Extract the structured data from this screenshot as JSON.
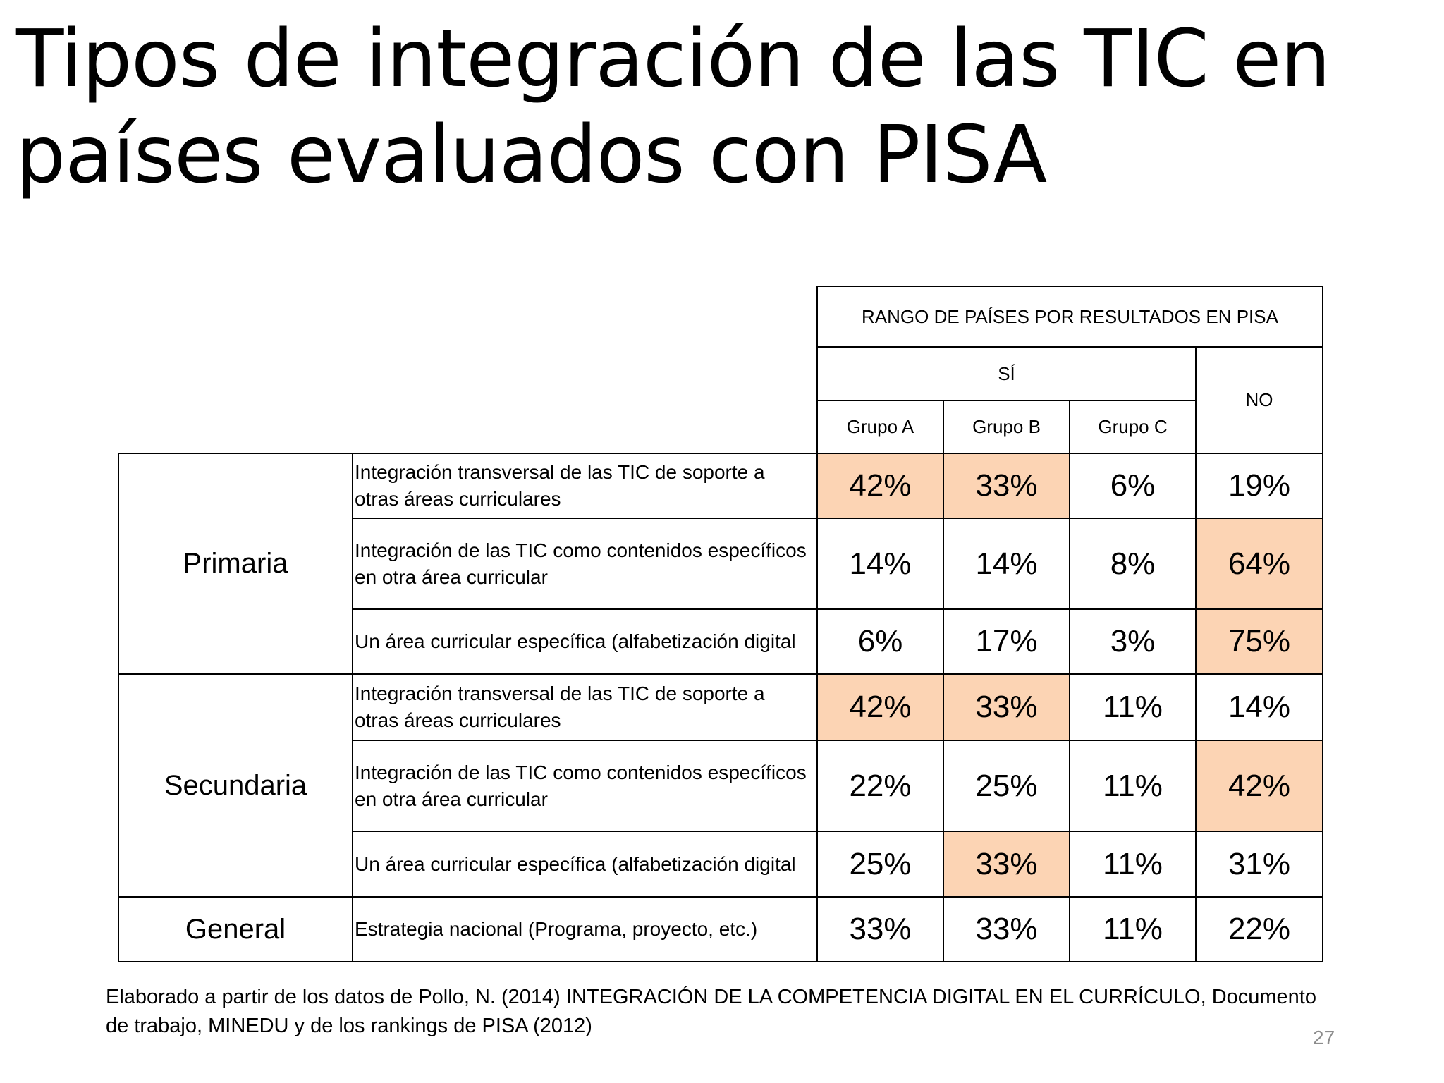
{
  "slide": {
    "title_line1": "Tipos de integración de las TIC en",
    "title_line2": "países evaluados con PISA",
    "page_number": "27",
    "source_line1": "Elaborado a partir de los datos de Pollo, N. (2014) INTEGRACIÓN DE LA COMPETENCIA DIGITAL EN EL CURRÍCULO, Documento",
    "source_line2": "de trabajo, MINEDU y de los rankings de PISA (2012)"
  },
  "table": {
    "header_range": "RANGO DE PAÍSES POR RESULTADOS EN PISA",
    "header_si": "SÍ",
    "header_no": "NO",
    "groups": [
      "Grupo A",
      "Grupo B",
      "Grupo C"
    ],
    "levels": {
      "primaria": "Primaria",
      "secundaria": "Secundaria",
      "general": "General"
    },
    "highlight_color": "#fcd4b4",
    "rows": [
      {
        "level": "primaria",
        "desc1": "Integración transversal de las TIC de soporte a",
        "desc2": "otras áreas curriculares",
        "values": [
          "42%",
          "33%",
          "6%",
          "19%"
        ],
        "highlight": [
          true,
          true,
          false,
          false
        ]
      },
      {
        "level": "primaria",
        "desc1": "Integración de las TIC como contenidos específicos",
        "desc2": "en otra área curricular",
        "values": [
          "14%",
          "14%",
          "8%",
          "64%"
        ],
        "highlight": [
          false,
          false,
          false,
          true
        ]
      },
      {
        "level": "primaria",
        "desc1": "Un área curricular específica (alfabetización digital",
        "desc2": "",
        "values": [
          "6%",
          "17%",
          "3%",
          "75%"
        ],
        "highlight": [
          false,
          false,
          false,
          true
        ]
      },
      {
        "level": "secundaria",
        "desc1": "Integración transversal de las TIC de soporte a",
        "desc2": "otras áreas curriculares",
        "values": [
          "42%",
          "33%",
          "11%",
          "14%"
        ],
        "highlight": [
          true,
          true,
          false,
          false
        ]
      },
      {
        "level": "secundaria",
        "desc1": "Integración de las TIC como contenidos específicos",
        "desc2": "en otra área curricular",
        "values": [
          "22%",
          "25%",
          "11%",
          "42%"
        ],
        "highlight": [
          false,
          false,
          false,
          true
        ]
      },
      {
        "level": "secundaria",
        "desc1": "Un área curricular específica (alfabetización digital",
        "desc2": "",
        "values": [
          "25%",
          "33%",
          "11%",
          "31%"
        ],
        "highlight": [
          false,
          true,
          false,
          false
        ]
      },
      {
        "level": "general",
        "desc1": "Estrategia nacional (Programa, proyecto, etc.)",
        "desc2": "",
        "values": [
          "33%",
          "33%",
          "11%",
          "22%"
        ],
        "highlight": [
          false,
          false,
          false,
          false
        ]
      }
    ]
  }
}
